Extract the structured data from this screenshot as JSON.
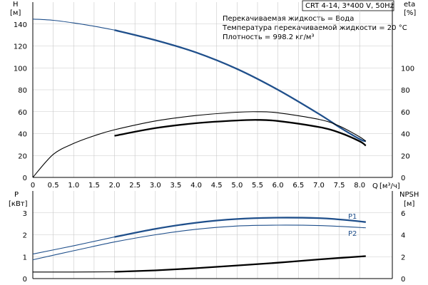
{
  "header": {
    "model": "CRT 4-14, 3*400 V, 50Hz",
    "liquid_line": "Перекачиваемая жидкость = Вода",
    "temp_line": "Температура перекачиваемой жидкости = 20 °C",
    "density_line": "Плотность = 998.2 кг/м³"
  },
  "colors": {
    "blue": "#1f4f8b",
    "black": "#000000",
    "grid": "#c8c8c8"
  },
  "chart_data": [
    {
      "type": "line",
      "panel": "top",
      "left_axis": {
        "label": "H",
        "unit": "[м]",
        "ylim": [
          0,
          160
        ],
        "ticks": [
          0,
          20,
          40,
          60,
          80,
          100,
          120,
          140
        ]
      },
      "right_axis": {
        "label": "eta",
        "unit": "[%]",
        "ylim": [
          0,
          160
        ],
        "ticks": [
          0,
          20,
          40,
          60,
          80,
          100
        ]
      },
      "x_axis": {
        "label": "Q",
        "unit": "[м³/ч]",
        "xlim": [
          0,
          8.8
        ],
        "ticks": [
          "0",
          "0.5",
          "1.0",
          "1.5",
          "2.0",
          "2.5",
          "3.0",
          "3.5",
          "4.0",
          "4.5",
          "5.0",
          "5.5",
          "6.0",
          "6.5",
          "7.0",
          "7.5",
          "8.0"
        ]
      },
      "series": [
        {
          "axis": "left",
          "color": "blue",
          "style": "thin",
          "x": [
            0,
            0.5,
            1.0,
            1.5,
            2.0
          ],
          "y": [
            144.5,
            143.4,
            141.0,
            138.0,
            134.5
          ]
        },
        {
          "axis": "left",
          "color": "blue",
          "style": "thick",
          "x": [
            2.0,
            3.0,
            4.0,
            5.0,
            6.0,
            7.0,
            7.5,
            8.0,
            8.15
          ],
          "y": [
            134.5,
            125.3,
            114.0,
            99.0,
            80.0,
            58.0,
            46.0,
            35.0,
            33.0
          ]
        },
        {
          "axis": "right",
          "color": "black",
          "style": "thin",
          "x": [
            0,
            0.5,
            1.0,
            1.5,
            2.0,
            3.0,
            4.0,
            5.0,
            5.5,
            6.0,
            7.0,
            7.5,
            8.0,
            8.15
          ],
          "y": [
            0,
            21,
            31,
            38,
            43.5,
            51.5,
            56.5,
            59.5,
            60.0,
            59.0,
            53.0,
            47.0,
            37.0,
            33.0
          ]
        },
        {
          "axis": "right",
          "color": "black",
          "style": "thick",
          "x": [
            2.0,
            3.0,
            4.0,
            5.0,
            5.5,
            6.0,
            7.0,
            7.5,
            8.0,
            8.15
          ],
          "y": [
            38.0,
            45.0,
            49.5,
            52.0,
            52.5,
            51.5,
            46.0,
            41.0,
            33.0,
            29.0
          ]
        }
      ]
    },
    {
      "type": "line",
      "panel": "bottom",
      "left_axis": {
        "label": "P",
        "unit": "[кВт]",
        "ylim": [
          0,
          4
        ],
        "ticks": [
          0,
          1,
          2,
          3
        ]
      },
      "right_axis": {
        "label": "NPSH",
        "unit": "[м]",
        "ylim": [
          0,
          8
        ],
        "ticks": [
          0,
          2,
          4,
          6
        ]
      },
      "x_axis": {
        "xlim": [
          0,
          8.8
        ]
      },
      "series": [
        {
          "name": "P1",
          "axis": "left",
          "color": "blue",
          "style": "thin",
          "x": [
            0,
            1.0,
            2.0
          ],
          "y": [
            1.12,
            1.5,
            1.9
          ]
        },
        {
          "name": "P1",
          "axis": "left",
          "color": "blue",
          "style": "thick",
          "x": [
            2.0,
            3.0,
            4.0,
            5.0,
            6.0,
            7.0,
            7.5,
            8.15
          ],
          "y": [
            1.9,
            2.27,
            2.55,
            2.72,
            2.78,
            2.76,
            2.7,
            2.58
          ]
        },
        {
          "name": "P2",
          "axis": "left",
          "color": "blue",
          "style": "thin",
          "x": [
            0,
            1.0,
            2.0,
            3.0,
            4.0,
            5.0,
            6.0,
            7.0,
            8.15
          ],
          "y": [
            0.86,
            1.27,
            1.67,
            2.0,
            2.25,
            2.4,
            2.44,
            2.42,
            2.32
          ]
        },
        {
          "axis": "right",
          "color": "black",
          "style": "thin",
          "x": [
            0,
            1.0,
            2.0
          ],
          "y": [
            0.6,
            0.6,
            0.62
          ]
        },
        {
          "axis": "right",
          "color": "black",
          "style": "thick",
          "x": [
            2.0,
            3.0,
            4.0,
            5.0,
            6.0,
            7.0,
            8.15
          ],
          "y": [
            0.62,
            0.75,
            0.95,
            1.2,
            1.45,
            1.75,
            2.05
          ]
        }
      ],
      "labels": {
        "p1": "P1",
        "p2": "P2"
      }
    }
  ]
}
